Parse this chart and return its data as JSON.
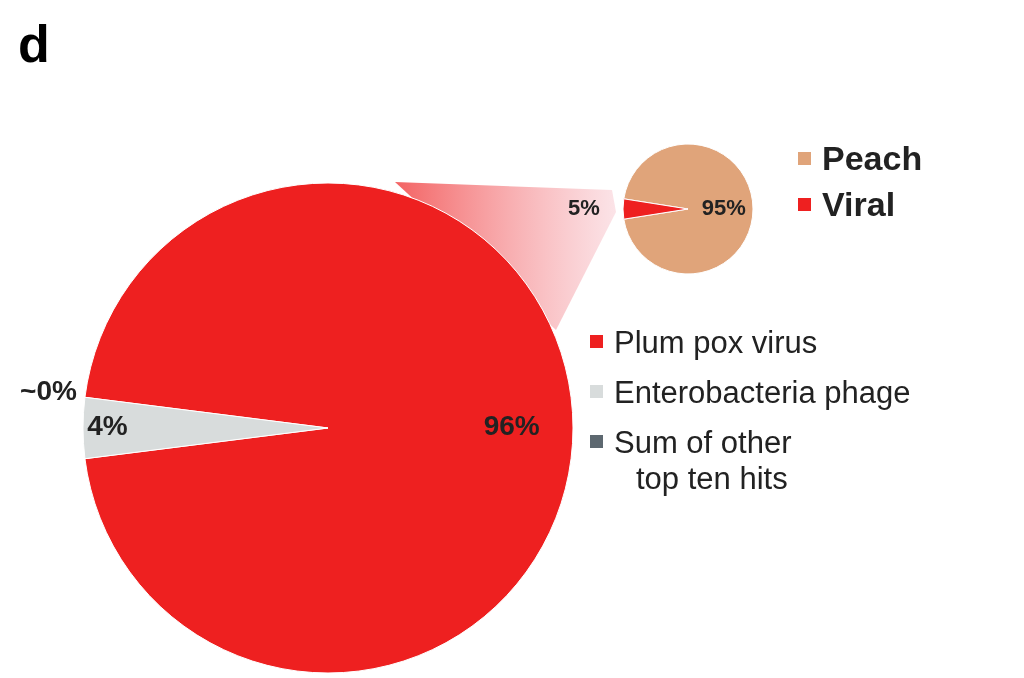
{
  "chart_data": [
    {
      "type": "pie",
      "title": "d",
      "categories": [
        "Peach",
        "Viral"
      ],
      "values": [
        95,
        5
      ],
      "colors": [
        "#e0a47a",
        "#ee2020"
      ],
      "value_labels": [
        "95%",
        "5%"
      ],
      "legend": "right"
    },
    {
      "type": "pie",
      "categories": [
        "Plum pox virus",
        "Enterobacteria phage",
        "Sum of other top ten hits"
      ],
      "values": [
        96,
        4,
        0
      ],
      "colors": [
        "#ee2020",
        "#d8dcdc",
        "#5d6870"
      ],
      "value_labels": [
        "96%",
        "4%",
        "~0%"
      ],
      "legend": "right"
    }
  ]
}
